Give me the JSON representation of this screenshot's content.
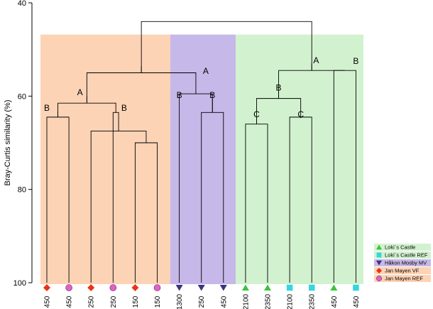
{
  "chart_data": {
    "type": "dendrogram",
    "ylabel": "Bray-Curtis similarity (%)",
    "ylim": [
      40,
      100
    ],
    "yticks": [
      40,
      60,
      80,
      100
    ],
    "colors": {
      "jan_mayen": "#fdd3b6",
      "hakon_mosby": "#c6b8e8",
      "lokis_castle": "#d2f2cf",
      "red_diamond": "#e83418",
      "pink_circle": "#e55fc8",
      "navy_triangle": "#393382",
      "green_triangle": "#3bc43e",
      "cyan_square": "#34d6df"
    },
    "leaves": [
      {
        "label": "450",
        "marker": "red-diamond"
      },
      {
        "label": "450",
        "marker": "pink-circle"
      },
      {
        "label": "250",
        "marker": "red-diamond"
      },
      {
        "label": "250",
        "marker": "pink-circle"
      },
      {
        "label": "150",
        "marker": "red-diamond"
      },
      {
        "label": "150",
        "marker": "pink-circle"
      },
      {
        "label": "1300",
        "marker": "navy-triangle"
      },
      {
        "label": "250",
        "marker": "navy-triangle"
      },
      {
        "label": "450",
        "marker": "navy-triangle"
      },
      {
        "label": "2100",
        "marker": "green-triangle"
      },
      {
        "label": "2350",
        "marker": "green-triangle"
      },
      {
        "label": "2100",
        "marker": "cyan-square"
      },
      {
        "label": "2350",
        "marker": "cyan-square"
      },
      {
        "label": "450",
        "marker": "green-triangle"
      },
      {
        "label": "450",
        "marker": "cyan-square"
      }
    ],
    "merges": [
      {
        "id": "n1",
        "children": [
          4,
          5
        ],
        "similarity": 70
      },
      {
        "id": "n2",
        "children": [
          2,
          "n1"
        ],
        "similarity": 67.5
      },
      {
        "id": "n3",
        "children": [
          0,
          1
        ],
        "similarity": 64.5
      },
      {
        "id": "n4",
        "children": [
          9,
          10
        ],
        "similarity": 66
      },
      {
        "id": "n5",
        "children": [
          11,
          12
        ],
        "similarity": 64.5
      },
      {
        "id": "n6",
        "children": [
          7,
          8
        ],
        "similarity": 63.5
      },
      {
        "id": "n7",
        "children": [
          3,
          "n2"
        ],
        "similarity": 63.5
      },
      {
        "id": "n8",
        "children": [
          "n3",
          "n7"
        ],
        "similarity": 61.5
      },
      {
        "id": "n9",
        "children": [
          "n4",
          "n5"
        ],
        "similarity": 60.5
      },
      {
        "id": "n10",
        "children": [
          13,
          14
        ],
        "similarity": 54.5
      },
      {
        "id": "n11",
        "children": [
          6,
          "n6"
        ],
        "similarity": 59.5
      },
      {
        "id": "n12",
        "children": [
          "n9",
          "n10"
        ],
        "similarity": 54.5
      },
      {
        "id": "n13",
        "children": [
          "n8",
          "n11"
        ],
        "similarity": 55
      },
      {
        "id": "n14",
        "children": [
          "n13",
          "n12"
        ],
        "similarity": 44
      }
    ],
    "node_labels": [
      {
        "text": "B",
        "leaf_pos": 0,
        "similarity": 62.5
      },
      {
        "text": "B",
        "leaf_pos": 3.5,
        "similarity": 62.5
      },
      {
        "text": "A",
        "leaf_pos": 1.5,
        "similarity": 59.2
      },
      {
        "text": "B",
        "leaf_pos": 6,
        "similarity": 59.8
      },
      {
        "text": "B",
        "leaf_pos": 7.5,
        "similarity": 59.8
      },
      {
        "text": "A",
        "leaf_pos": 7.2,
        "similarity": 54.6
      },
      {
        "text": "C",
        "leaf_pos": 9.5,
        "similarity": 63.9
      },
      {
        "text": "C",
        "leaf_pos": 11.5,
        "similarity": 63.9
      },
      {
        "text": "B",
        "leaf_pos": 10.5,
        "similarity": 58.2
      },
      {
        "text": "B",
        "leaf_pos": 14,
        "similarity": 52.5
      },
      {
        "text": "A",
        "leaf_pos": 12.2,
        "similarity": 52.3
      }
    ],
    "legend": [
      {
        "label": "Loki´s Castle",
        "marker": "green-triangle",
        "band": "lokis_castle"
      },
      {
        "label": "Loki´s Castle REF",
        "marker": "cyan-square",
        "band": "lokis_castle"
      },
      {
        "label": "Håkon Mosby MV",
        "marker": "navy-triangle",
        "band": "hakon_mosby"
      },
      {
        "label": "Jan Mayen VF",
        "marker": "red-diamond",
        "band": "jan_mayen"
      },
      {
        "label": "Jan Mayen REF",
        "marker": "pink-circle",
        "band": "jan_mayen"
      }
    ],
    "groups": [
      {
        "band": "jan_mayen",
        "from_leaf": 0,
        "to_leaf": 5
      },
      {
        "band": "hakon_mosby",
        "from_leaf": 6,
        "to_leaf": 8
      },
      {
        "band": "lokis_castle",
        "from_leaf": 9,
        "to_leaf": 14
      }
    ],
    "shading_top": 46.8
  }
}
